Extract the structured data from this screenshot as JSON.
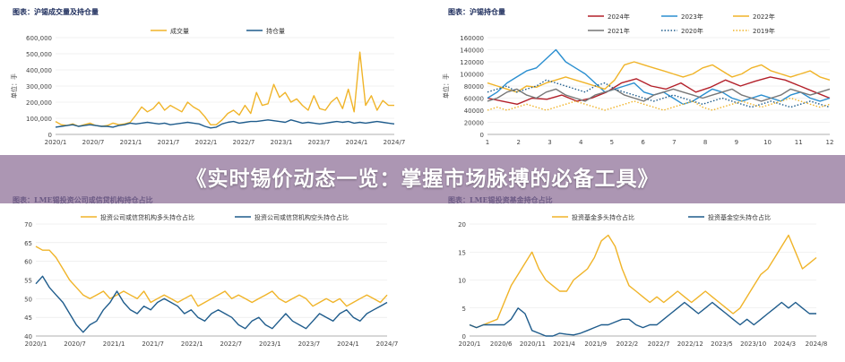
{
  "colors": {
    "gold": "#f0b429",
    "blue": "#1f5c8c",
    "red": "#b3202a",
    "lightblue": "#2b8fd0",
    "gray": "#777777",
    "grid": "#e6e6e6",
    "axis": "#999999"
  },
  "banner": {
    "title": "《实时锡价动态一览：掌握市场脉搏的必备工具》"
  },
  "chart_data": [
    {
      "type": "line",
      "title": "图表：沪锡成交量及持仓量",
      "ylabel": "单位：手",
      "ylim": [
        0,
        600000
      ],
      "yticks": [
        "0",
        "100,000",
        "200,000",
        "300,000",
        "400,000",
        "500,000",
        "600,000"
      ],
      "xticks": [
        "2020/1",
        "2020/7",
        "2021/1",
        "2021/7",
        "2022/1",
        "2022/7",
        "2023/1",
        "2023/7",
        "2024/1",
        "2024/7"
      ],
      "legend_position": "top",
      "series": [
        {
          "name": "成交量",
          "color": "gold",
          "values": [
            80000,
            60000,
            55000,
            65000,
            50000,
            60000,
            70000,
            55000,
            50000,
            55000,
            70000,
            60000,
            65000,
            75000,
            120000,
            170000,
            140000,
            160000,
            200000,
            150000,
            180000,
            160000,
            140000,
            200000,
            170000,
            150000,
            110000,
            60000,
            60000,
            90000,
            130000,
            150000,
            120000,
            180000,
            130000,
            260000,
            180000,
            190000,
            310000,
            230000,
            260000,
            200000,
            220000,
            180000,
            150000,
            240000,
            160000,
            150000,
            200000,
            230000,
            160000,
            280000,
            140000,
            510000,
            180000,
            240000,
            150000,
            210000,
            180000,
            180000
          ]
        },
        {
          "name": "持仓量",
          "color": "blue",
          "values": [
            45000,
            50000,
            55000,
            60000,
            50000,
            55000,
            60000,
            55000,
            50000,
            50000,
            45000,
            55000,
            60000,
            70000,
            65000,
            70000,
            75000,
            70000,
            65000,
            70000,
            60000,
            65000,
            70000,
            75000,
            70000,
            65000,
            50000,
            40000,
            45000,
            65000,
            75000,
            80000,
            70000,
            75000,
            80000,
            80000,
            85000,
            90000,
            85000,
            80000,
            75000,
            90000,
            80000,
            70000,
            75000,
            70000,
            65000,
            70000,
            75000,
            80000,
            75000,
            80000,
            70000,
            75000,
            70000,
            75000,
            80000,
            75000,
            70000,
            65000
          ]
        }
      ]
    },
    {
      "type": "line",
      "title": "图表：沪锡持仓量",
      "ylabel": "单位：手",
      "ylim": [
        0,
        160000
      ],
      "yticks": [
        "0",
        "20000",
        "40000",
        "60000",
        "80000",
        "100000",
        "120000",
        "140000",
        "160000"
      ],
      "xticks": [
        "1",
        "2",
        "3",
        "4",
        "5",
        "6",
        "7",
        "8",
        "9",
        "10",
        "11",
        "12"
      ],
      "legend_position": "top",
      "series": [
        {
          "name": "2024年",
          "color": "red",
          "style": "solid",
          "values": [
            60000,
            55000,
            50000,
            60000,
            58000,
            65000,
            55000,
            60000,
            70000,
            85000,
            92000,
            80000,
            75000,
            85000,
            70000,
            78000,
            90000,
            80000,
            88000,
            95000,
            90000,
            80000,
            70000,
            60000
          ]
        },
        {
          "name": "2023年",
          "color": "lightblue",
          "style": "solid",
          "values": [
            60000,
            70000,
            85000,
            95000,
            105000,
            110000,
            125000,
            140000,
            120000,
            110000,
            100000,
            85000,
            70000,
            75000,
            80000,
            85000,
            70000,
            65000,
            70000,
            60000,
            50000,
            55000,
            65000,
            75000,
            70000,
            60000,
            55000,
            60000,
            65000,
            60000,
            55000,
            65000,
            70000,
            60000,
            55000,
            60000
          ]
        },
        {
          "name": "2022年",
          "color": "gold",
          "style": "solid",
          "values": [
            85000,
            80000,
            75000,
            70000,
            80000,
            78000,
            85000,
            90000,
            95000,
            90000,
            85000,
            80000,
            75000,
            90000,
            115000,
            120000,
            115000,
            110000,
            105000,
            100000,
            95000,
            100000,
            110000,
            115000,
            105000,
            95000,
            100000,
            110000,
            115000,
            105000,
            100000,
            95000,
            100000,
            105000,
            95000,
            90000
          ]
        },
        {
          "name": "2021年",
          "color": "gray",
          "style": "solid",
          "values": [
            55000,
            60000,
            70000,
            75000,
            65000,
            60000,
            70000,
            75000,
            65000,
            60000,
            55000,
            65000,
            70000,
            75000,
            65000,
            60000,
            55000,
            65000,
            70000,
            75000,
            70000,
            65000,
            60000,
            65000,
            70000,
            75000,
            65000,
            60000,
            55000,
            60000,
            65000,
            75000,
            70000,
            65000,
            70000,
            75000
          ]
        },
        {
          "name": "2020年",
          "color": "blue",
          "style": "dotted",
          "values": [
            70000,
            75000,
            80000,
            70000,
            75000,
            80000,
            90000,
            85000,
            80000,
            75000,
            70000,
            80000,
            85000,
            75000,
            70000,
            65000,
            60000,
            55000,
            60000,
            65000,
            60000,
            55000,
            50000,
            55000,
            60000,
            55000,
            50000,
            45000,
            50000,
            55000,
            50000,
            45000,
            50000,
            55000,
            50000,
            45000
          ]
        },
        {
          "name": "2019年",
          "color": "gold",
          "style": "dotted",
          "values": [
            40000,
            45000,
            40000,
            45000,
            50000,
            45000,
            40000,
            45000,
            50000,
            55000,
            50000,
            45000,
            40000,
            45000,
            50000,
            55000,
            50000,
            45000,
            40000,
            45000,
            50000,
            55000,
            45000,
            40000,
            45000,
            50000,
            55000,
            50000,
            45000,
            50000,
            55000,
            60000,
            55000,
            50000,
            45000,
            50000
          ]
        }
      ]
    },
    {
      "type": "line",
      "title": "图表：LME锡投资公司或信贷机构持仓占比",
      "ylabel": "单位：%",
      "ylim": [
        40,
        70
      ],
      "yticks": [
        "40",
        "45",
        "50",
        "55",
        "60",
        "65",
        "70"
      ],
      "xticks": [
        "2020/1",
        "2020/7",
        "2021/1",
        "2021/7",
        "2022/1",
        "2022/7",
        "2023/1",
        "2023/7",
        "2024/1",
        "2024/7"
      ],
      "legend_position": "top",
      "series": [
        {
          "name": "投资公司或信贷机构多头持仓占比",
          "color": "gold",
          "values": [
            64,
            63,
            63,
            61,
            58,
            55,
            53,
            51,
            50,
            51,
            52,
            50,
            51,
            52,
            51,
            50,
            52,
            49,
            50,
            51,
            50,
            49,
            50,
            51,
            48,
            49,
            50,
            51,
            52,
            50,
            51,
            50,
            49,
            50,
            51,
            52,
            50,
            49,
            50,
            51,
            50,
            48,
            49,
            50,
            49,
            50,
            48,
            49,
            50,
            51,
            50,
            49,
            51
          ]
        },
        {
          "name": "投资公司或信贷机构空头持仓占比",
          "color": "blue",
          "values": [
            54,
            56,
            53,
            51,
            49,
            46,
            43,
            41,
            43,
            44,
            47,
            49,
            52,
            49,
            47,
            46,
            48,
            47,
            49,
            50,
            49,
            48,
            46,
            47,
            45,
            44,
            46,
            47,
            46,
            45,
            43,
            42,
            44,
            45,
            43,
            42,
            44,
            46,
            44,
            43,
            42,
            44,
            46,
            45,
            44,
            46,
            47,
            45,
            44,
            46,
            47,
            48,
            49
          ]
        }
      ]
    },
    {
      "type": "line",
      "title": "图表：LME锡投资基金持仓占比",
      "ylabel": "单位：%",
      "ylim": [
        0,
        20
      ],
      "yticks": [
        "0",
        "5",
        "10",
        "15",
        "20"
      ],
      "xticks": [
        "2020/1",
        "2020/6",
        "2020/11",
        "2021/4",
        "2021/9",
        "2022/2",
        "2022/7",
        "2022/12",
        "2023/5",
        "2023/10",
        "2024/3",
        "2024/8"
      ],
      "legend_position": "top",
      "series": [
        {
          "name": "投资基金多头持仓占比",
          "color": "gold",
          "values": [
            2,
            1.5,
            2,
            2.5,
            3,
            6,
            9,
            11,
            13,
            15,
            12,
            10,
            9,
            8,
            8,
            10,
            11,
            12,
            14,
            17,
            18,
            16,
            12,
            9,
            8,
            7,
            6,
            7,
            6,
            7,
            8,
            7,
            6,
            7,
            8,
            7,
            6,
            5,
            4,
            5,
            7,
            9,
            11,
            12,
            14,
            16,
            18,
            15,
            12,
            13,
            14
          ]
        },
        {
          "name": "投资基金空头持仓占比",
          "color": "blue",
          "values": [
            2,
            1.5,
            2,
            2,
            2,
            2,
            3,
            5,
            4,
            1,
            0.5,
            0,
            0,
            0.5,
            0.3,
            0.2,
            0.5,
            1,
            1.5,
            2,
            2,
            2.5,
            3,
            3,
            2,
            1.5,
            2,
            2,
            3,
            4,
            5,
            6,
            5,
            4,
            5,
            6,
            5,
            4,
            3,
            2,
            3,
            2,
            3,
            4,
            5,
            6,
            5,
            6,
            5,
            4,
            4
          ]
        }
      ]
    }
  ]
}
